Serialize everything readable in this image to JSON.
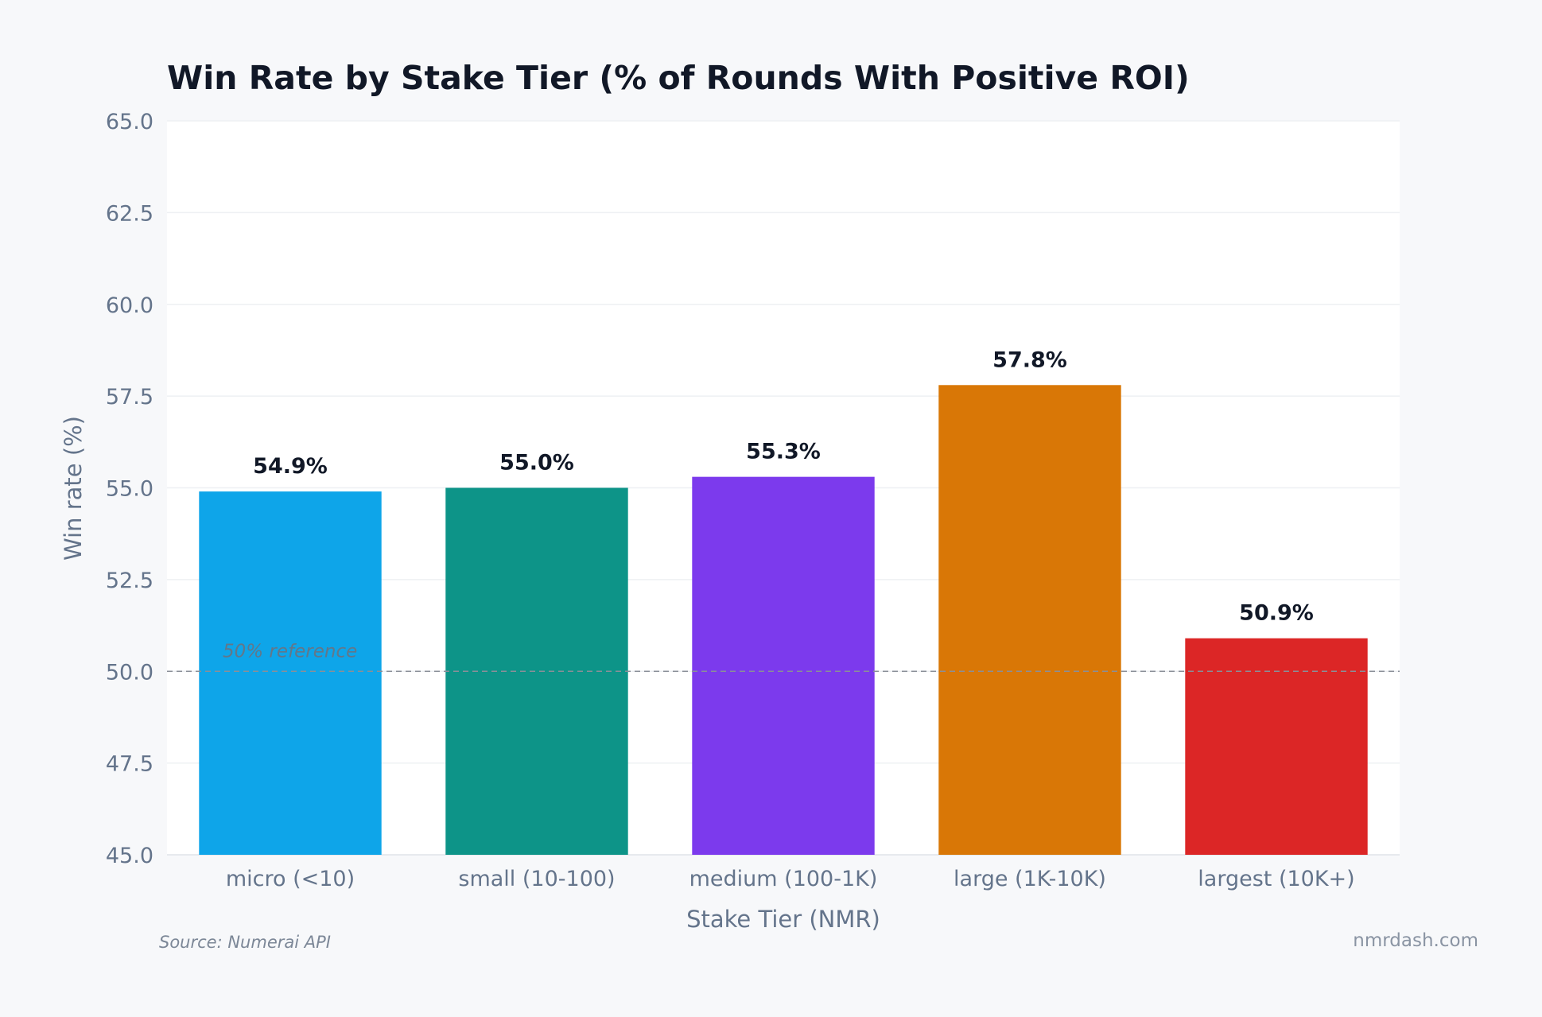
{
  "chart_data": {
    "type": "bar",
    "title": "Win Rate by Stake Tier (% of Rounds With Positive ROI)",
    "xlabel": "Stake Tier (NMR)",
    "ylabel": "Win rate (%)",
    "categories": [
      "micro (<10)",
      "small (10-100)",
      "medium (100-1K)",
      "large (1K-10K)",
      "largest (10K+)"
    ],
    "values": [
      54.9,
      55.0,
      55.3,
      57.8,
      50.9
    ],
    "value_labels": [
      "54.9%",
      "55.0%",
      "55.3%",
      "57.8%",
      "50.9%"
    ],
    "bar_colors": [
      "#0ea5e9",
      "#0d9488",
      "#7c3aed",
      "#d97706",
      "#dc2626"
    ],
    "ylim": [
      45.0,
      65.0
    ],
    "yticks": [
      45.0,
      47.5,
      50.0,
      52.5,
      55.0,
      57.5,
      60.0,
      62.5,
      65.0
    ],
    "ytick_labels": [
      "45.0",
      "47.5",
      "50.0",
      "52.5",
      "55.0",
      "57.5",
      "60.0",
      "62.5",
      "65.0"
    ],
    "grid": true,
    "reference_line": {
      "value": 50.0,
      "label": "50% reference",
      "color": "#8a8f98"
    }
  },
  "footer": {
    "source": "Source: Numerai API",
    "site": "nmrdash.com"
  },
  "colors": {
    "background": "#f7f8fa",
    "plot_background": "#ffffff",
    "title": "#111827",
    "axis_text": "#64748b",
    "grid": "#eef0f3",
    "value_label": "#111827"
  }
}
